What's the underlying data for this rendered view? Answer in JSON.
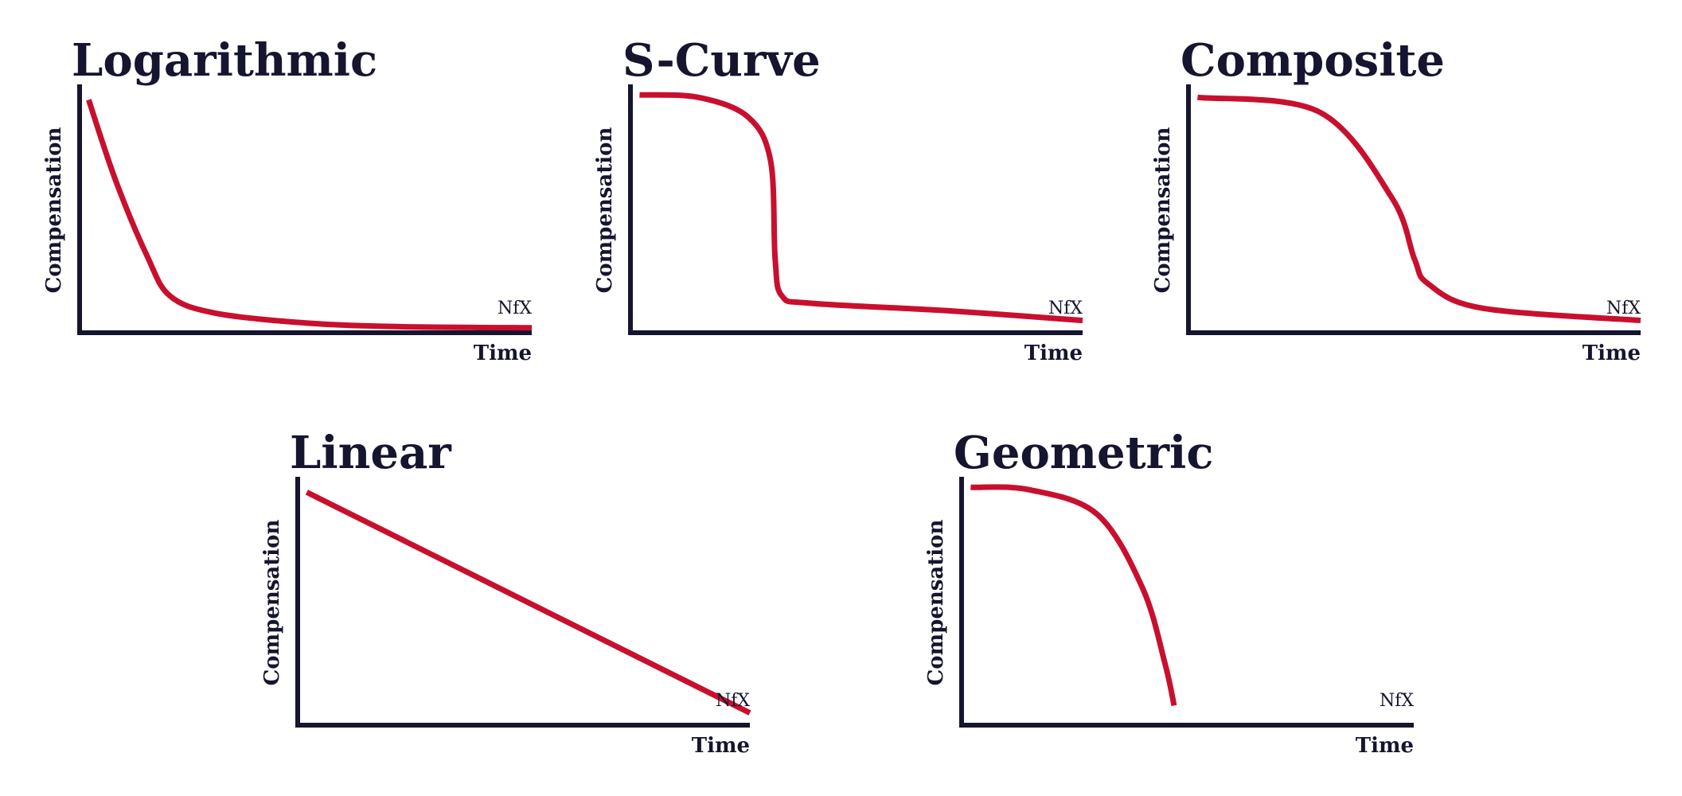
{
  "colors": {
    "curve": "#c8102e",
    "axis": "#151530",
    "text": "#151530"
  },
  "watermark": "NfX",
  "charts": {
    "logarithmic": {
      "title": "Logarithmic",
      "chart_data": {
        "type": "line",
        "title": "Logarithmic",
        "xlabel": "Time",
        "ylabel": "Compensation",
        "xlim": [
          0,
          10
        ],
        "ylim": [
          0,
          10
        ],
        "grid": false,
        "series": [
          {
            "x": [
              0.2,
              0.8,
              1.5,
              2.0,
              3.0,
              5.0,
              7.0,
              10.0
            ],
            "y": [
              9.5,
              6.2,
              3.1,
              1.5,
              0.8,
              0.4,
              0.25,
              0.2
            ]
          }
        ]
      }
    },
    "s_curve": {
      "title": "S-Curve",
      "chart_data": {
        "type": "line",
        "title": "S-Curve",
        "xlabel": "Time",
        "ylabel": "Compensation",
        "xlim": [
          0,
          10
        ],
        "ylim": [
          0,
          10
        ],
        "grid": false,
        "series": [
          {
            "x": [
              0.2,
              1.5,
              2.6,
              3.1,
              3.2,
              3.35,
              4.0,
              7.0,
              10.0
            ],
            "y": [
              9.7,
              9.6,
              8.8,
              7.0,
              3.0,
              1.5,
              1.2,
              0.9,
              0.5
            ]
          }
        ]
      }
    },
    "composite": {
      "title": "Composite",
      "chart_data": {
        "type": "line",
        "title": "Composite",
        "xlabel": "Time",
        "ylabel": "Compensation",
        "xlim": [
          0,
          10
        ],
        "ylim": [
          0,
          10
        ],
        "grid": false,
        "series": [
          {
            "x": [
              0.2,
              2.9,
              4.5,
              5.0,
              5.3,
              6.5,
              10.0
            ],
            "y": [
              9.6,
              9.0,
              5.5,
              3.0,
              2.0,
              1.0,
              0.5
            ]
          }
        ]
      }
    },
    "linear": {
      "title": "Linear",
      "chart_data": {
        "type": "line",
        "title": "Linear",
        "xlabel": "Time",
        "ylabel": "Compensation",
        "xlim": [
          0,
          10
        ],
        "ylim": [
          0,
          10
        ],
        "grid": false,
        "series": [
          {
            "x": [
              0.2,
              10.0
            ],
            "y": [
              9.5,
              0.5
            ]
          }
        ]
      }
    },
    "geometric": {
      "title": "Geometric",
      "chart_data": {
        "type": "line",
        "title": "Geometric",
        "xlabel": "Time",
        "ylabel": "Compensation",
        "xlim": [
          0,
          10
        ],
        "ylim": [
          0,
          10
        ],
        "grid": false,
        "series": [
          {
            "x": [
              0.2,
              1.5,
              3.0,
              4.0,
              4.5,
              4.7
            ],
            "y": [
              9.7,
              9.6,
              8.6,
              5.6,
              2.5,
              0.8
            ]
          }
        ]
      }
    }
  }
}
